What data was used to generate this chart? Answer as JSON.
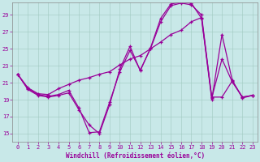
{
  "xlabel": "Windchill (Refroidissement éolien,°C)",
  "bg_color": "#c8e8e8",
  "line_color": "#990099",
  "xlim": [
    -0.5,
    23.5
  ],
  "ylim": [
    14,
    30.5
  ],
  "yticks": [
    15,
    17,
    19,
    21,
    23,
    25,
    27,
    29
  ],
  "xticks": [
    0,
    1,
    2,
    3,
    4,
    5,
    6,
    7,
    8,
    9,
    10,
    11,
    12,
    13,
    14,
    15,
    16,
    17,
    18,
    19,
    20,
    21,
    22,
    23
  ],
  "line1_x": [
    0,
    1,
    2,
    3,
    4,
    5,
    6,
    7,
    8,
    9,
    10,
    11,
    12,
    13,
    14,
    15,
    16,
    17,
    18,
    19,
    20,
    21,
    22,
    23
  ],
  "line1_y": [
    22.0,
    20.3,
    19.6,
    19.4,
    19.6,
    20.1,
    18.0,
    15.1,
    15.2,
    18.7,
    22.3,
    24.8,
    22.5,
    25.0,
    28.2,
    30.1,
    30.4,
    30.2,
    29.0,
    19.2,
    23.8,
    21.1,
    19.3,
    19.5
  ],
  "line2_x": [
    0,
    1,
    2,
    3,
    4,
    5,
    6,
    7,
    8,
    9,
    10,
    11,
    12,
    13,
    14,
    15,
    16,
    17,
    18,
    19,
    20,
    21,
    22,
    23
  ],
  "line2_y": [
    22.0,
    20.4,
    19.7,
    19.6,
    20.3,
    20.8,
    21.3,
    21.6,
    22.0,
    22.3,
    23.1,
    23.8,
    24.2,
    25.0,
    25.8,
    26.7,
    27.2,
    28.2,
    28.7,
    19.3,
    19.3,
    21.2,
    19.3,
    19.5
  ],
  "line3_x": [
    0,
    1,
    2,
    3,
    4,
    5,
    6,
    7,
    8,
    9,
    10,
    11,
    12,
    13,
    14,
    15,
    16,
    17,
    18,
    19,
    20,
    21,
    22,
    23
  ],
  "line3_y": [
    22.0,
    20.2,
    19.5,
    19.3,
    19.5,
    19.8,
    17.8,
    16.0,
    15.0,
    18.4,
    22.6,
    25.3,
    22.4,
    25.1,
    28.6,
    30.3,
    30.5,
    30.4,
    28.6,
    19.0,
    26.7,
    21.3,
    19.2,
    19.5
  ]
}
